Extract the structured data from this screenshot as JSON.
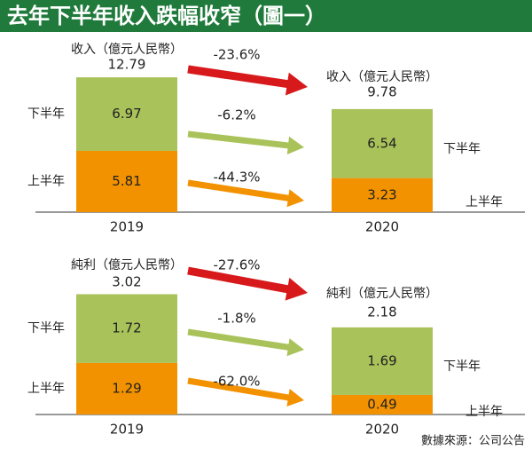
{
  "title": "去年下半年收入跌幅收窄（圖一）",
  "source": "數據來源：公司公告",
  "colors": {
    "title_bg": "#1f7a3b",
    "first_half": "#f39200",
    "second_half": "#a9c25a",
    "arrow_total": "#d7191c",
    "arrow_second_half": "#a9c25a",
    "arrow_first_half": "#f39200"
  },
  "chart_data": [
    {
      "type": "bar",
      "stacked": true,
      "name": "收入（億元人民幣）",
      "categories": [
        "2019",
        "2020"
      ],
      "stack_labels": [
        "下半年",
        "上半年"
      ],
      "series": [
        {
          "name": "上半年",
          "values": [
            5.81,
            3.23
          ]
        },
        {
          "name": "下半年",
          "values": [
            6.97,
            6.54
          ]
        }
      ],
      "totals": [
        "12.79",
        "9.78"
      ],
      "segment_labels": {
        "first": [
          "5.81",
          "3.23"
        ],
        "second": [
          "6.97",
          "6.54"
        ]
      },
      "changes": {
        "total": "-23.6%",
        "second": "-6.2%",
        "first": "-44.3%"
      }
    },
    {
      "type": "bar",
      "stacked": true,
      "name": "純利（億元人民幣）",
      "categories": [
        "2019",
        "2020"
      ],
      "stack_labels": [
        "下半年",
        "上半年"
      ],
      "series": [
        {
          "name": "上半年",
          "values": [
            1.29,
            0.49
          ]
        },
        {
          "name": "下半年",
          "values": [
            1.72,
            1.69
          ]
        }
      ],
      "totals": [
        "3.02",
        "2.18"
      ],
      "segment_labels": {
        "first": [
          "1.29",
          "0.49"
        ],
        "second": [
          "1.72",
          "1.69"
        ]
      },
      "changes": {
        "total": "-27.6%",
        "second": "-1.8%",
        "first": "-62.0%"
      }
    }
  ]
}
